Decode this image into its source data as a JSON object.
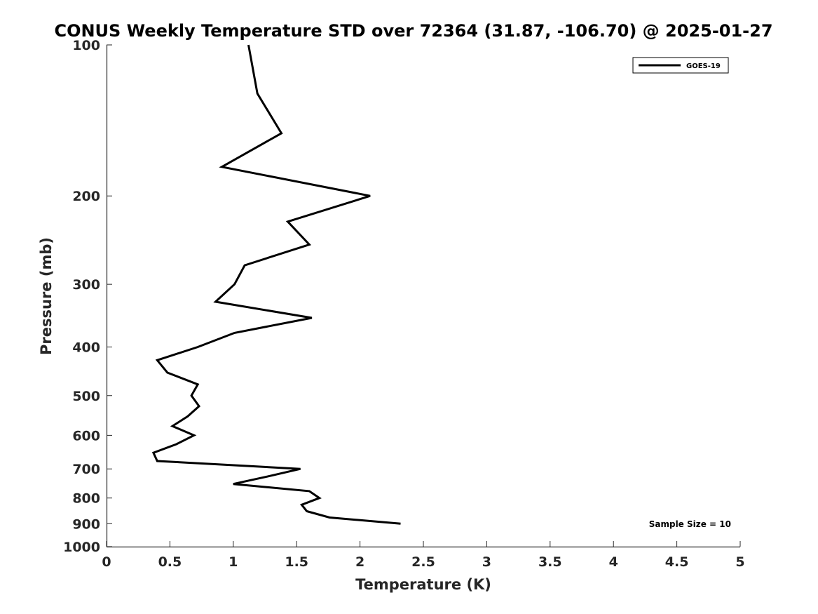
{
  "chart_data": {
    "type": "line",
    "title": "CONUS Weekly Temperature STD over 72364 (31.87, -106.70) @ 2025-01-27",
    "xlabel": "Temperature (K)",
    "ylabel": "Pressure (mb)",
    "xlim": [
      0,
      5
    ],
    "ylim": [
      100,
      1000
    ],
    "y_scale": "log",
    "y_reversed": true,
    "x_ticks": [
      "0",
      "0.5",
      "1",
      "1.5",
      "2",
      "2.5",
      "3",
      "3.5",
      "4",
      "4.5",
      "5"
    ],
    "y_ticks": [
      "100",
      "200",
      "300",
      "400",
      "500",
      "600",
      "700",
      "800",
      "900",
      "1000"
    ],
    "grid": false,
    "legend_position": "top-right",
    "series": [
      {
        "name": "GOES-19",
        "color": "#000000",
        "points": [
          {
            "x": 1.12,
            "p": 100
          },
          {
            "x": 1.19,
            "p": 125
          },
          {
            "x": 1.38,
            "p": 150
          },
          {
            "x": 0.91,
            "p": 175
          },
          {
            "x": 2.08,
            "p": 200
          },
          {
            "x": 1.43,
            "p": 225
          },
          {
            "x": 1.6,
            "p": 250
          },
          {
            "x": 1.09,
            "p": 275
          },
          {
            "x": 1.01,
            "p": 300
          },
          {
            "x": 0.86,
            "p": 325
          },
          {
            "x": 1.62,
            "p": 350
          },
          {
            "x": 1.01,
            "p": 375
          },
          {
            "x": 0.72,
            "p": 400
          },
          {
            "x": 0.4,
            "p": 425
          },
          {
            "x": 0.48,
            "p": 450
          },
          {
            "x": 0.72,
            "p": 475
          },
          {
            "x": 0.67,
            "p": 500
          },
          {
            "x": 0.73,
            "p": 525
          },
          {
            "x": 0.64,
            "p": 550
          },
          {
            "x": 0.52,
            "p": 575
          },
          {
            "x": 0.69,
            "p": 600
          },
          {
            "x": 0.55,
            "p": 625
          },
          {
            "x": 0.37,
            "p": 650
          },
          {
            "x": 0.4,
            "p": 675
          },
          {
            "x": 1.53,
            "p": 700
          },
          {
            "x": 1.27,
            "p": 725
          },
          {
            "x": 1.0,
            "p": 750
          },
          {
            "x": 1.6,
            "p": 775
          },
          {
            "x": 1.68,
            "p": 800
          },
          {
            "x": 1.54,
            "p": 825
          },
          {
            "x": 1.58,
            "p": 850
          },
          {
            "x": 1.76,
            "p": 875
          },
          {
            "x": 2.32,
            "p": 900
          }
        ]
      }
    ],
    "annotation": "Sample Size = 10"
  }
}
